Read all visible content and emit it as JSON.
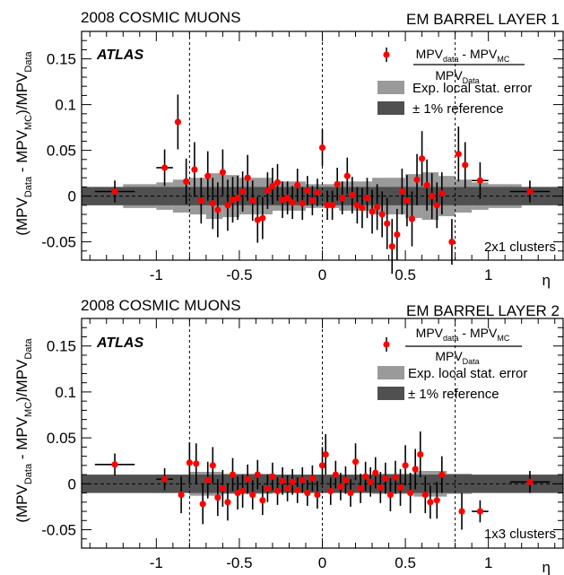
{
  "colors": {
    "points": "#ff0000",
    "stat_band": "#9a9a9a",
    "ref_band": "#505050",
    "frame": "#000000"
  },
  "legend": {
    "fraction_numerator": "MPVdata - MPVMC",
    "fraction_denominator": "MPVData",
    "stat_label": "Exp. local stat. error",
    "ref_label": "± 1% reference"
  },
  "chart_data": [
    {
      "type": "scatter",
      "title_left": "2008 COSMIC MUONS",
      "title_right": "EM BARREL LAYER 1",
      "brand": "ATLAS",
      "cluster_label": "2x1 clusters",
      "xlabel": "η",
      "ylabel": "(MPV_Data - MPV_MC)/MPV_Data",
      "xlim": [
        -1.45,
        1.45
      ],
      "ylim": [
        -0.07,
        0.18
      ],
      "x_ticks": [
        "-1",
        "-0.5",
        "0",
        "0.5",
        "1"
      ],
      "y_ticks": [
        "-0.05",
        "0",
        "0.05",
        "0.1",
        "0.15"
      ],
      "vertical_lines": [
        -0.8,
        0,
        0.8
      ],
      "ref_band": 0.01,
      "stat_band": [
        {
          "x": [
            -1.45,
            -1.2
          ],
          "h": 0.01
        },
        {
          "x": [
            -1.2,
            -1.0
          ],
          "h": 0.013
        },
        {
          "x": [
            -1.0,
            -0.9
          ],
          "h": 0.015
        },
        {
          "x": [
            -0.9,
            -0.8
          ],
          "h": 0.018
        },
        {
          "x": [
            -0.8,
            -0.7
          ],
          "h": 0.02
        },
        {
          "x": [
            -0.7,
            -0.6
          ],
          "h": 0.025
        },
        {
          "x": [
            -0.6,
            -0.5
          ],
          "h": 0.023
        },
        {
          "x": [
            -0.5,
            -0.3
          ],
          "h": 0.02
        },
        {
          "x": [
            -0.3,
            -0.1
          ],
          "h": 0.016
        },
        {
          "x": [
            -0.1,
            0.1
          ],
          "h": 0.013
        },
        {
          "x": [
            0.1,
            0.3
          ],
          "h": 0.016
        },
        {
          "x": [
            0.3,
            0.5
          ],
          "h": 0.02
        },
        {
          "x": [
            0.5,
            0.6
          ],
          "h": 0.024
        },
        {
          "x": [
            0.6,
            0.7
          ],
          "h": 0.026
        },
        {
          "x": [
            0.7,
            0.8
          ],
          "h": 0.022
        },
        {
          "x": [
            0.8,
            0.9
          ],
          "h": 0.018
        },
        {
          "x": [
            0.9,
            1.0
          ],
          "h": 0.015
        },
        {
          "x": [
            1.0,
            1.2
          ],
          "h": 0.013
        },
        {
          "x": [
            1.2,
            1.45
          ],
          "h": 0.01
        }
      ],
      "points": [
        {
          "x": -1.25,
          "y": 0.005,
          "err": 0.012,
          "xerr": 0.12
        },
        {
          "x": -0.95,
          "y": 0.031,
          "err": 0.02,
          "xerr": 0.05
        },
        {
          "x": -0.87,
          "y": 0.081,
          "err": 0.03
        },
        {
          "x": -0.82,
          "y": 0.016,
          "err": 0.025
        },
        {
          "x": -0.77,
          "y": 0.029,
          "err": 0.03
        },
        {
          "x": -0.73,
          "y": -0.005,
          "err": 0.025
        },
        {
          "x": -0.69,
          "y": 0.022,
          "err": 0.027
        },
        {
          "x": -0.66,
          "y": -0.008,
          "err": 0.028
        },
        {
          "x": -0.63,
          "y": -0.015,
          "err": 0.03
        },
        {
          "x": -0.6,
          "y": 0.026,
          "err": 0.025
        },
        {
          "x": -0.57,
          "y": -0.01,
          "err": 0.028
        },
        {
          "x": -0.54,
          "y": -0.004,
          "err": 0.025
        },
        {
          "x": -0.51,
          "y": -0.002,
          "err": 0.024
        },
        {
          "x": -0.48,
          "y": 0.005,
          "err": 0.022
        },
        {
          "x": -0.45,
          "y": 0.02,
          "err": 0.025
        },
        {
          "x": -0.42,
          "y": -0.005,
          "err": 0.022
        },
        {
          "x": -0.39,
          "y": -0.026,
          "err": 0.025
        },
        {
          "x": -0.36,
          "y": -0.024,
          "err": 0.023
        },
        {
          "x": -0.33,
          "y": 0.006,
          "err": 0.02
        },
        {
          "x": -0.3,
          "y": 0.011,
          "err": 0.02
        },
        {
          "x": -0.27,
          "y": 0.015,
          "err": 0.02
        },
        {
          "x": -0.24,
          "y": -0.004,
          "err": 0.02
        },
        {
          "x": -0.21,
          "y": -0.002,
          "err": 0.018
        },
        {
          "x": -0.18,
          "y": -0.007,
          "err": 0.018
        },
        {
          "x": -0.15,
          "y": 0.012,
          "err": 0.018
        },
        {
          "x": -0.12,
          "y": -0.008,
          "err": 0.018
        },
        {
          "x": -0.09,
          "y": 0.006,
          "err": 0.016
        },
        {
          "x": -0.06,
          "y": -0.005,
          "err": 0.016
        },
        {
          "x": -0.03,
          "y": 0.004,
          "err": 0.015
        },
        {
          "x": 0.0,
          "y": 0.053,
          "err": 0.02
        },
        {
          "x": 0.03,
          "y": -0.01,
          "err": 0.016
        },
        {
          "x": 0.06,
          "y": -0.01,
          "err": 0.016
        },
        {
          "x": 0.09,
          "y": 0.013,
          "err": 0.018
        },
        {
          "x": 0.12,
          "y": -0.002,
          "err": 0.018
        },
        {
          "x": 0.15,
          "y": 0.022,
          "err": 0.02
        },
        {
          "x": 0.18,
          "y": 0.001,
          "err": 0.02
        },
        {
          "x": 0.21,
          "y": -0.01,
          "err": 0.02
        },
        {
          "x": 0.24,
          "y": -0.013,
          "err": 0.022
        },
        {
          "x": 0.27,
          "y": -0.002,
          "err": 0.022
        },
        {
          "x": 0.3,
          "y": -0.017,
          "err": 0.024
        },
        {
          "x": 0.33,
          "y": -0.012,
          "err": 0.025
        },
        {
          "x": 0.36,
          "y": -0.02,
          "err": 0.025
        },
        {
          "x": 0.39,
          "y": -0.03,
          "err": 0.028
        },
        {
          "x": 0.42,
          "y": -0.055,
          "err": 0.03
        },
        {
          "x": 0.45,
          "y": -0.042,
          "err": 0.028
        },
        {
          "x": 0.48,
          "y": 0.005,
          "err": 0.025
        },
        {
          "x": 0.51,
          "y": -0.005,
          "err": 0.028
        },
        {
          "x": 0.54,
          "y": -0.025,
          "err": 0.03
        },
        {
          "x": 0.57,
          "y": 0.018,
          "err": 0.028
        },
        {
          "x": 0.6,
          "y": 0.041,
          "err": 0.03
        },
        {
          "x": 0.63,
          "y": 0.012,
          "err": 0.028
        },
        {
          "x": 0.66,
          "y": 0.0,
          "err": 0.025
        },
        {
          "x": 0.69,
          "y": -0.01,
          "err": 0.025
        },
        {
          "x": 0.72,
          "y": 0.003,
          "err": 0.023
        },
        {
          "x": 0.78,
          "y": -0.05,
          "err": 0.025
        },
        {
          "x": 0.82,
          "y": 0.046,
          "err": 0.03
        },
        {
          "x": 0.86,
          "y": 0.034,
          "err": 0.025
        },
        {
          "x": 0.95,
          "y": 0.017,
          "err": 0.02,
          "xerr": 0.05
        },
        {
          "x": 1.25,
          "y": 0.005,
          "err": 0.012,
          "xerr": 0.12
        }
      ]
    },
    {
      "type": "scatter",
      "title_left": "2008 COSMIC MUONS",
      "title_right": "EM BARREL LAYER 2",
      "brand": "ATLAS",
      "cluster_label": "1x3 clusters",
      "xlabel": "η",
      "ylabel": "(MPV_Data - MPV_MC)/MPV_Data",
      "xlim": [
        -1.45,
        1.45
      ],
      "ylim": [
        -0.07,
        0.18
      ],
      "x_ticks": [
        "-1",
        "-0.5",
        "0",
        "0.5",
        "1"
      ],
      "y_ticks": [
        "-0.05",
        "0",
        "0.05",
        "0.1",
        "0.15"
      ],
      "vertical_lines": [
        -0.8,
        0,
        0.8
      ],
      "ref_band": 0.01,
      "stat_band": [
        {
          "x": [
            -1.45,
            -1.0
          ],
          "h": 0.008
        },
        {
          "x": [
            -1.0,
            -0.8
          ],
          "h": 0.01
        },
        {
          "x": [
            -0.8,
            -0.6
          ],
          "h": 0.013
        },
        {
          "x": [
            -0.6,
            -0.3
          ],
          "h": 0.011
        },
        {
          "x": [
            -0.3,
            0.3
          ],
          "h": 0.009
        },
        {
          "x": [
            0.3,
            0.55
          ],
          "h": 0.011
        },
        {
          "x": [
            0.55,
            0.75
          ],
          "h": 0.014
        },
        {
          "x": [
            0.75,
            0.9
          ],
          "h": 0.011
        },
        {
          "x": [
            0.9,
            1.45
          ],
          "h": 0.008
        }
      ],
      "points": [
        {
          "x": -1.25,
          "y": 0.021,
          "err": 0.012,
          "xerr": 0.12
        },
        {
          "x": -0.95,
          "y": 0.005,
          "err": 0.012,
          "xerr": 0.05
        },
        {
          "x": -0.85,
          "y": -0.012,
          "err": 0.02
        },
        {
          "x": -0.8,
          "y": 0.023,
          "err": 0.022
        },
        {
          "x": -0.76,
          "y": 0.022,
          "err": 0.022
        },
        {
          "x": -0.72,
          "y": -0.022,
          "err": 0.022
        },
        {
          "x": -0.69,
          "y": 0.004,
          "err": 0.02
        },
        {
          "x": -0.66,
          "y": 0.02,
          "err": 0.02
        },
        {
          "x": -0.63,
          "y": -0.015,
          "err": 0.02
        },
        {
          "x": -0.6,
          "y": -0.005,
          "err": 0.02
        },
        {
          "x": -0.57,
          "y": -0.02,
          "err": 0.02
        },
        {
          "x": -0.54,
          "y": 0.01,
          "err": 0.018
        },
        {
          "x": -0.51,
          "y": -0.01,
          "err": 0.018
        },
        {
          "x": -0.48,
          "y": -0.008,
          "err": 0.018
        },
        {
          "x": -0.45,
          "y": 0.005,
          "err": 0.016
        },
        {
          "x": -0.42,
          "y": -0.012,
          "err": 0.016
        },
        {
          "x": -0.39,
          "y": 0.01,
          "err": 0.016
        },
        {
          "x": -0.36,
          "y": -0.018,
          "err": 0.016
        },
        {
          "x": -0.33,
          "y": -0.005,
          "err": 0.015
        },
        {
          "x": -0.3,
          "y": 0.008,
          "err": 0.015
        },
        {
          "x": -0.27,
          "y": -0.008,
          "err": 0.015
        },
        {
          "x": -0.24,
          "y": 0.003,
          "err": 0.015
        },
        {
          "x": -0.21,
          "y": -0.005,
          "err": 0.014
        },
        {
          "x": -0.18,
          "y": 0.002,
          "err": 0.014
        },
        {
          "x": -0.15,
          "y": -0.007,
          "err": 0.014
        },
        {
          "x": -0.12,
          "y": 0.004,
          "err": 0.014
        },
        {
          "x": -0.09,
          "y": -0.01,
          "err": 0.014
        },
        {
          "x": -0.06,
          "y": 0.006,
          "err": 0.014
        },
        {
          "x": -0.03,
          "y": -0.012,
          "err": 0.015
        },
        {
          "x": 0.0,
          "y": 0.02,
          "err": 0.02
        },
        {
          "x": 0.02,
          "y": 0.032,
          "err": 0.022
        },
        {
          "x": 0.05,
          "y": -0.008,
          "err": 0.015
        },
        {
          "x": 0.08,
          "y": 0.01,
          "err": 0.015
        },
        {
          "x": 0.11,
          "y": -0.003,
          "err": 0.015
        },
        {
          "x": 0.14,
          "y": 0.004,
          "err": 0.015
        },
        {
          "x": 0.17,
          "y": -0.01,
          "err": 0.015
        },
        {
          "x": 0.2,
          "y": 0.024,
          "err": 0.02
        },
        {
          "x": 0.23,
          "y": -0.005,
          "err": 0.016
        },
        {
          "x": 0.26,
          "y": 0.008,
          "err": 0.016
        },
        {
          "x": 0.29,
          "y": 0.002,
          "err": 0.016
        },
        {
          "x": 0.32,
          "y": 0.012,
          "err": 0.017
        },
        {
          "x": 0.35,
          "y": -0.004,
          "err": 0.017
        },
        {
          "x": 0.38,
          "y": 0.006,
          "err": 0.017
        },
        {
          "x": 0.41,
          "y": -0.012,
          "err": 0.018
        },
        {
          "x": 0.44,
          "y": 0.007,
          "err": 0.018
        },
        {
          "x": 0.47,
          "y": -0.004,
          "err": 0.02
        },
        {
          "x": 0.5,
          "y": 0.02,
          "err": 0.022
        },
        {
          "x": 0.53,
          "y": -0.01,
          "err": 0.022
        },
        {
          "x": 0.56,
          "y": 0.016,
          "err": 0.022
        },
        {
          "x": 0.59,
          "y": 0.032,
          "err": 0.025
        },
        {
          "x": 0.62,
          "y": -0.012,
          "err": 0.02
        },
        {
          "x": 0.65,
          "y": -0.02,
          "err": 0.018
        },
        {
          "x": 0.69,
          "y": -0.018,
          "err": 0.02
        },
        {
          "x": 0.72,
          "y": 0.01,
          "err": 0.02
        },
        {
          "x": 0.84,
          "y": -0.03,
          "err": 0.02
        },
        {
          "x": 0.95,
          "y": -0.03,
          "err": 0.012,
          "xerr": 0.05
        },
        {
          "x": 1.25,
          "y": 0.002,
          "err": 0.012,
          "xerr": 0.12
        }
      ]
    }
  ]
}
